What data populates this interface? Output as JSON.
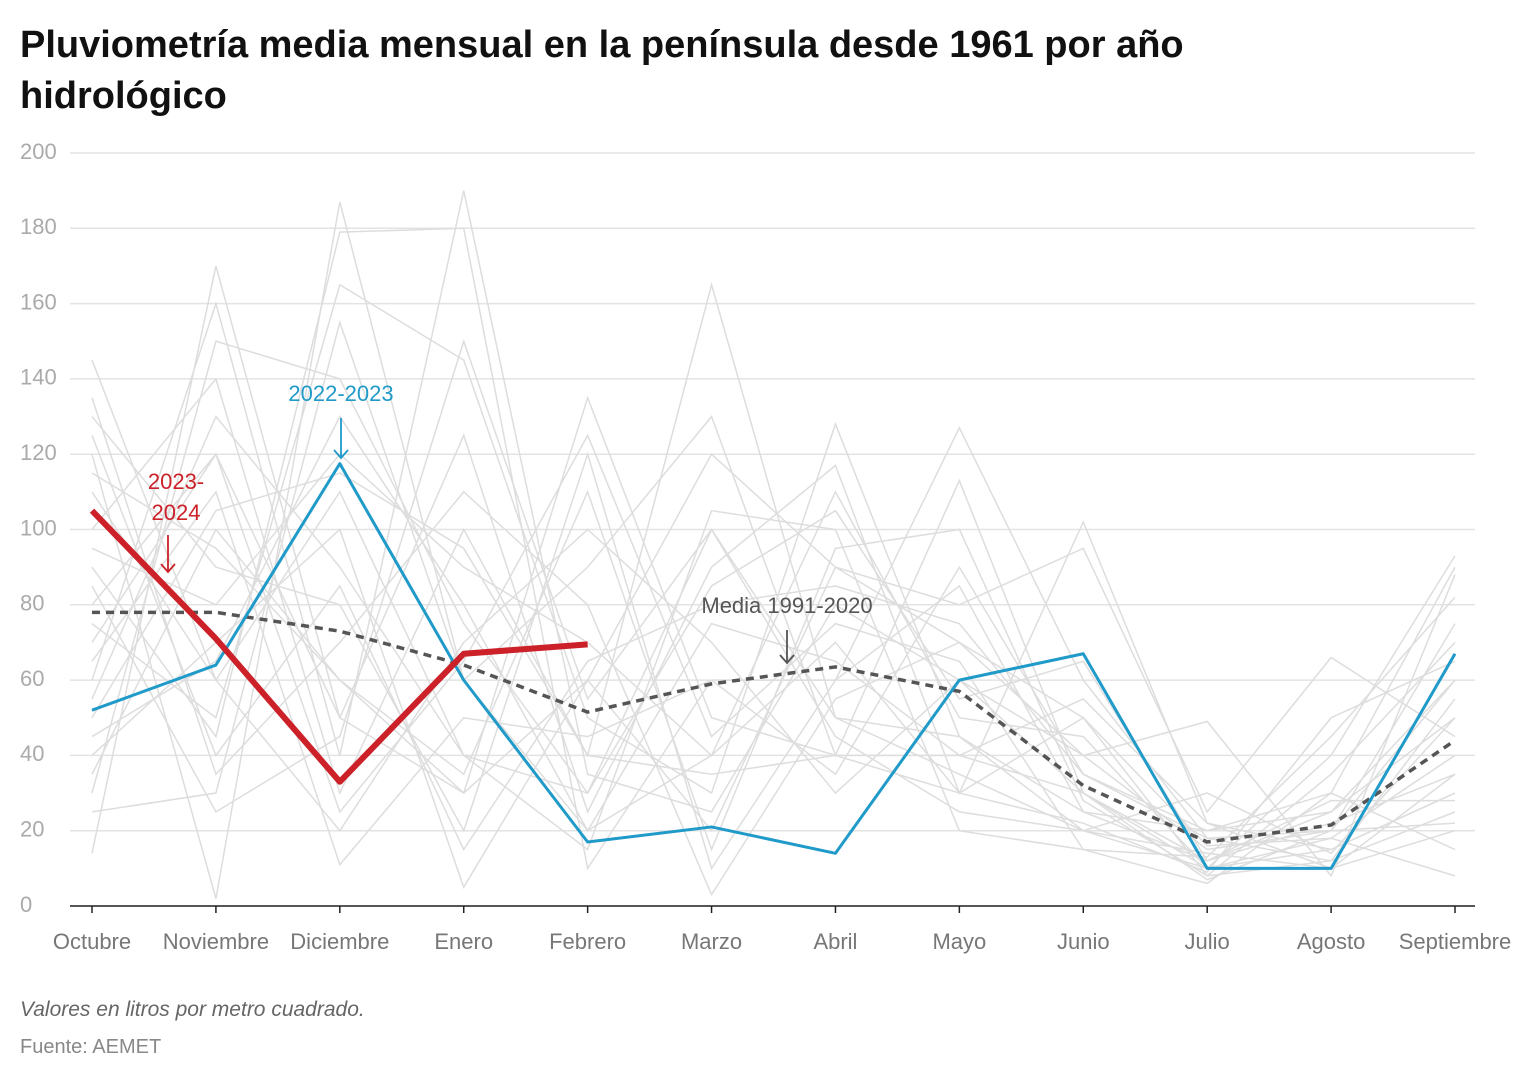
{
  "chart_data": {
    "type": "line",
    "title": "Pluviometría media mensual en la península desde 1961 por año hidrológico",
    "note": "Valores en litros por metro cuadrado.",
    "source": "Fuente: AEMET",
    "categories": [
      "Octubre",
      "Noviembre",
      "Diciembre",
      "Enero",
      "Febrero",
      "Marzo",
      "Abril",
      "Mayo",
      "Junio",
      "Julio",
      "Agosto",
      "Septiembre"
    ],
    "ylim": [
      0,
      200
    ],
    "yticks": [
      0,
      20,
      40,
      60,
      80,
      100,
      120,
      140,
      160,
      180,
      200
    ],
    "grid": true,
    "background_color": "#dddddd",
    "background_series": [
      [
        145,
        60,
        110,
        40,
        30,
        100,
        50,
        45,
        20,
        10,
        15,
        30
      ],
      [
        14,
        170,
        50,
        30,
        60,
        20,
        90,
        70,
        40,
        15,
        20,
        60
      ],
      [
        120,
        2,
        187,
        60,
        20,
        40,
        70,
        30,
        50,
        8,
        12,
        25
      ],
      [
        60,
        160,
        40,
        190,
        35,
        25,
        80,
        60,
        30,
        12,
        25,
        50
      ],
      [
        90,
        45,
        179,
        180,
        10,
        60,
        60,
        85,
        25,
        20,
        30,
        90
      ],
      [
        35,
        100,
        60,
        30,
        135,
        50,
        40,
        40,
        30,
        10,
        18,
        40
      ],
      [
        100,
        140,
        30,
        100,
        40,
        165,
        50,
        35,
        20,
        14,
        10,
        20
      ],
      [
        75,
        50,
        165,
        145,
        50,
        30,
        128,
        45,
        25,
        12,
        22,
        35
      ],
      [
        130,
        90,
        80,
        20,
        120,
        10,
        60,
        127,
        60,
        18,
        12,
        55
      ],
      [
        25,
        30,
        155,
        60,
        90,
        130,
        40,
        113,
        30,
        7,
        20,
        75
      ],
      [
        80,
        120,
        50,
        125,
        25,
        90,
        117,
        30,
        102,
        22,
        15,
        30
      ],
      [
        40,
        70,
        100,
        5,
        60,
        120,
        90,
        80,
        95,
        25,
        66,
        45
      ],
      [
        110,
        60,
        20,
        70,
        100,
        70,
        30,
        60,
        40,
        49,
        8,
        88
      ],
      [
        55,
        130,
        90,
        40,
        15,
        105,
        100,
        20,
        15,
        6,
        30,
        15
      ],
      [
        95,
        80,
        120,
        90,
        70,
        40,
        110,
        50,
        45,
        10,
        40,
        93
      ],
      [
        65,
        110,
        11,
        50,
        45,
        60,
        35,
        90,
        35,
        20,
        25,
        60
      ],
      [
        135,
        35,
        70,
        110,
        80,
        3,
        55,
        70,
        50,
        16,
        18,
        8
      ],
      [
        30,
        150,
        140,
        75,
        30,
        85,
        105,
        55,
        65,
        12,
        28,
        28
      ],
      [
        85,
        25,
        45,
        150,
        55,
        100,
        45,
        25,
        20,
        30,
        14,
        50
      ],
      [
        115,
        95,
        60,
        35,
        110,
        15,
        95,
        100,
        28,
        8,
        35,
        70
      ],
      [
        45,
        65,
        130,
        80,
        20,
        75,
        65,
        40,
        55,
        22,
        10,
        35
      ],
      [
        70,
        120,
        25,
        65,
        125,
        45,
        75,
        65,
        15,
        13,
        45,
        82
      ],
      [
        125,
        40,
        85,
        15,
        65,
        80,
        85,
        75,
        35,
        18,
        20,
        22
      ],
      [
        50,
        105,
        115,
        95,
        40,
        35,
        40,
        30,
        22,
        9,
        50,
        65
      ]
    ],
    "series": [
      {
        "name": "Media 1991-2020",
        "color": "#555555",
        "dashed": true,
        "values": [
          78,
          78,
          73,
          64,
          51.5,
          59,
          63.5,
          57,
          32,
          17,
          21.5,
          44
        ]
      },
      {
        "name": "2022-2023",
        "color": "#1f9ac9",
        "values": [
          52,
          64,
          117.5,
          60,
          17,
          21,
          14,
          60,
          67,
          10,
          10,
          67
        ]
      },
      {
        "name": "2023-2024",
        "color": "#cc2128",
        "values": [
          105,
          71,
          33,
          67,
          69.5,
          null,
          null,
          null,
          null,
          null,
          null,
          null
        ]
      }
    ]
  }
}
